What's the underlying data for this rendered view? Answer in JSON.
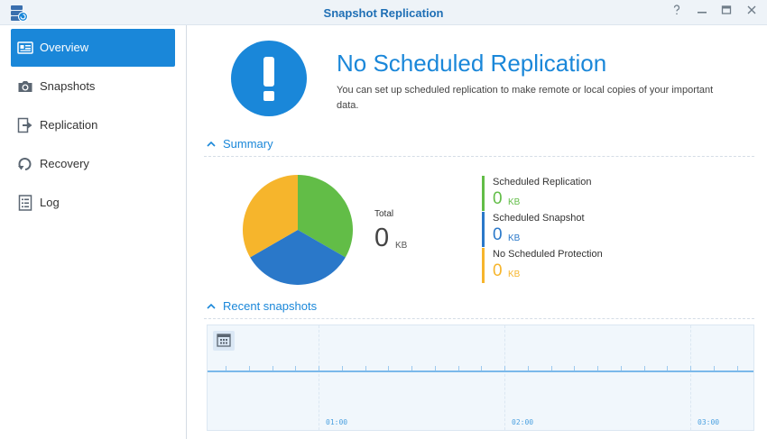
{
  "window": {
    "title": "Snapshot Replication",
    "controls": [
      "help-icon",
      "minimize-icon",
      "maximize-icon",
      "close-icon"
    ]
  },
  "sidebar": {
    "items": [
      {
        "label": "Overview",
        "icon": "overview-icon",
        "active": true
      },
      {
        "label": "Snapshots",
        "icon": "camera-icon",
        "active": false
      },
      {
        "label": "Replication",
        "icon": "replication-icon",
        "active": false
      },
      {
        "label": "Recovery",
        "icon": "recovery-icon",
        "active": false
      },
      {
        "label": "Log",
        "icon": "log-icon",
        "active": false
      }
    ]
  },
  "status": {
    "headline": "No Scheduled Replication",
    "description": "You can set up scheduled replication to make remote or local copies of your important data.",
    "icon": "exclamation-icon"
  },
  "summary": {
    "section_title": "Summary",
    "total_label": "Total",
    "total_value": "0",
    "total_unit": "KB",
    "legend": [
      {
        "label": "Scheduled Replication",
        "value": "0",
        "unit": "KB",
        "color": "#62bd47"
      },
      {
        "label": "Scheduled Snapshot",
        "value": "0",
        "unit": "KB",
        "color": "#2a78c9"
      },
      {
        "label": "No Scheduled Protection",
        "value": "0",
        "unit": "KB",
        "color": "#f6b52c"
      }
    ]
  },
  "recent": {
    "section_title": "Recent snapshots",
    "times": [
      "01:00",
      "02:00",
      "03:00"
    ],
    "icon": "calendar-icon"
  },
  "colors": {
    "accent": "#1a87d9",
    "green": "#62bd47",
    "blue": "#2a78c9",
    "yellow": "#f6b52c"
  }
}
